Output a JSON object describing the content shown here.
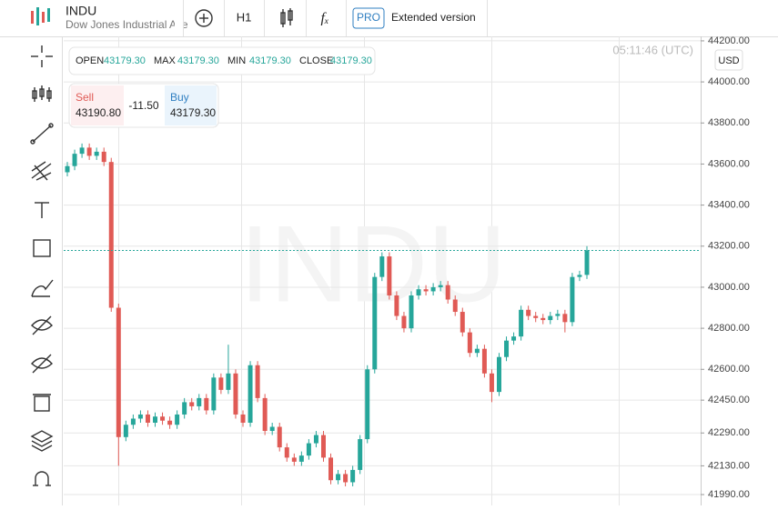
{
  "header": {
    "symbol": "INDU",
    "name": "Dow Jones Industrial Ave",
    "timeframe": "H1",
    "badge": "PRO",
    "extended": "Extended version"
  },
  "info": {
    "time": "05:11:46 (UTC)",
    "currency": "USD"
  },
  "ohlc": {
    "open_label": "OPEN",
    "open": "43179.30",
    "max_label": "MAX",
    "max": "43179.30",
    "min_label": "MIN",
    "min": "43179.30",
    "close_label": "CLOSE",
    "close": "43179.30"
  },
  "trade": {
    "sell_label": "Sell",
    "sell": "43190.80",
    "spread": "-11.50",
    "buy_label": "Buy",
    "buy": "43179.30"
  },
  "chart_data": {
    "type": "candlestick",
    "watermark": "INDU",
    "up_color": "#26a69a",
    "down_color": "#e05a55",
    "ylim": [
      41937,
      44213
    ],
    "yticks": [
      {
        "value": 44200,
        "label": "44200.00"
      },
      {
        "value": 44000,
        "label": "44000.00"
      },
      {
        "value": 43800,
        "label": "43800.00"
      },
      {
        "value": 43600,
        "label": "43600.00"
      },
      {
        "value": 43400,
        "label": "43400.00"
      },
      {
        "value": 43200,
        "label": "43200.00"
      },
      {
        "value": 43000,
        "label": "43000.00"
      },
      {
        "value": 42800,
        "label": "42800.00"
      },
      {
        "value": 42600,
        "label": "42600.00"
      },
      {
        "value": 42450,
        "label": "42450.00"
      },
      {
        "value": 42290,
        "label": "42290.00"
      },
      {
        "value": 42130,
        "label": "42130.00"
      },
      {
        "value": 41990,
        "label": "41990.00"
      }
    ],
    "grid": true,
    "open": [
      43560,
      43590,
      43650,
      43680,
      43640,
      43660,
      43610,
      42900,
      42270,
      42330,
      42360,
      42380,
      42340,
      42370,
      42350,
      42330,
      42380,
      42440,
      42420,
      42460,
      42400,
      42560,
      42500,
      42580,
      42380,
      42340,
      42620,
      42460,
      42300,
      42320,
      42220,
      42170,
      42150,
      42180,
      42240,
      42280,
      42170,
      42060,
      42090,
      42050,
      42110,
      42260,
      42600,
      43050,
      43150,
      42960,
      42860,
      42800,
      42960,
      42990,
      42980,
      43000,
      43010,
      42940,
      42880,
      42780,
      42680,
      42700,
      42580,
      42490,
      42660,
      42740,
      42760,
      42890,
      42860,
      42850,
      42840,
      42860,
      42870,
      42830,
      43050,
      43060
    ],
    "high": [
      43610,
      43670,
      43700,
      43700,
      43680,
      43680,
      43630,
      42920,
      42350,
      42380,
      42400,
      42400,
      42390,
      42390,
      42370,
      42400,
      42460,
      42460,
      42480,
      42480,
      42580,
      42580,
      42720,
      42600,
      42400,
      42640,
      42640,
      42480,
      42340,
      42340,
      42240,
      42190,
      42200,
      42260,
      42300,
      42300,
      42190,
      42110,
      42110,
      42130,
      42280,
      42620,
      43070,
      43170,
      43170,
      42980,
      42880,
      42980,
      43010,
      43010,
      43020,
      43030,
      43030,
      42960,
      42900,
      42800,
      42720,
      42720,
      42600,
      42680,
      42760,
      42780,
      42910,
      42910,
      42880,
      42870,
      42880,
      42890,
      42890,
      43070,
      43080,
      43200
    ],
    "low": [
      43540,
      43570,
      43630,
      43620,
      43620,
      43590,
      42880,
      42130,
      42250,
      42310,
      42340,
      42320,
      42320,
      42330,
      42310,
      42310,
      42360,
      42400,
      42400,
      42380,
      42380,
      42480,
      42480,
      42360,
      42320,
      42320,
      42440,
      42280,
      42280,
      42200,
      42150,
      42130,
      42130,
      42160,
      42220,
      42150,
      42040,
      42040,
      42030,
      42030,
      42090,
      42240,
      42580,
      43030,
      42940,
      42840,
      42780,
      42780,
      42940,
      42960,
      42960,
      42980,
      42920,
      42860,
      42760,
      42660,
      42660,
      42560,
      42440,
      42470,
      42640,
      42720,
      42740,
      42840,
      42830,
      42820,
      42820,
      42840,
      42780,
      42810,
      43030,
      43040
    ],
    "close": [
      43590,
      43650,
      43680,
      43640,
      43660,
      43610,
      42900,
      42270,
      42330,
      42360,
      42380,
      42340,
      42370,
      42350,
      42330,
      42380,
      42440,
      42420,
      42460,
      42400,
      42560,
      42500,
      42580,
      42380,
      42340,
      42620,
      42460,
      42300,
      42320,
      42220,
      42170,
      42150,
      42180,
      42240,
      42280,
      42170,
      42060,
      42090,
      42050,
      42110,
      42260,
      42600,
      43050,
      43150,
      42960,
      42860,
      42800,
      42960,
      42990,
      42980,
      43000,
      43010,
      42940,
      42880,
      42780,
      42680,
      42700,
      42580,
      42490,
      42660,
      42740,
      42760,
      42890,
      42860,
      42850,
      42840,
      42860,
      42870,
      42830,
      43050,
      43060,
      43179.3
    ]
  }
}
